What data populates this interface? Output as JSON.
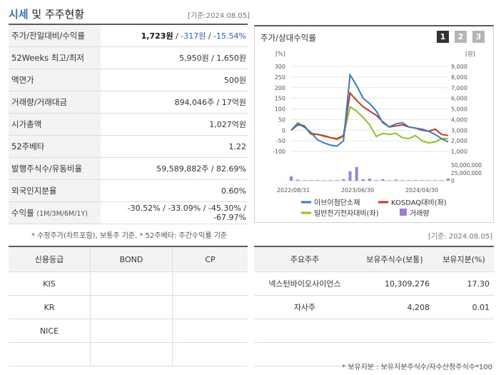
{
  "header": {
    "title_accent": "시세",
    "title_rest": " 및 주주현황",
    "date": "[기준:2024.08.05]"
  },
  "quote_rows": [
    {
      "label": "주가/전일대비/수익률",
      "price": "1,723원",
      "sep1": " / ",
      "change": "-317원",
      "sep2": " / ",
      "rate": "-15.54%"
    },
    {
      "label": "52Weeks 최고/최저",
      "value": "5,950원 / 1,650원"
    },
    {
      "label": "액면가",
      "value": "500원"
    },
    {
      "label": "거래량/거래대금",
      "value": "894,046주 / 17억원"
    },
    {
      "label": "시가총액",
      "value": "1,027억원"
    },
    {
      "label": "52주베타",
      "value": "1.22"
    },
    {
      "label": "발행주식수/유동비율",
      "value": "59,589,882주 / 82.69%"
    },
    {
      "label": "외국인지분율",
      "value": "0.60%"
    },
    {
      "label": "수익률",
      "label_sub": "(1M/3M/6M/1Y)",
      "value": "-30.52% / -33.09% / -45.30% / -67.97%"
    }
  ],
  "note1": "* 수정주가(차트포함), 보통주 기준, * 52주베타: 주간수익률 기준",
  "chart": {
    "title": "주가/상대수익률",
    "tabs": [
      "1",
      "2",
      "3"
    ],
    "left_unit": "[%]",
    "right_unit": "[원]",
    "left_ticks": [
      "300",
      "250",
      "200",
      "150",
      "100",
      "50",
      "0",
      "-50",
      "-100"
    ],
    "right_ticks": [
      "9,000",
      "8,000",
      "7,000",
      "6,000",
      "5,000",
      "4,000",
      "3,000",
      "2,000",
      "1,000"
    ],
    "vol_ticks": [
      "50,000,000",
      "25,000,000",
      "0"
    ],
    "x_ticks": [
      "2022/08/31",
      "2023/06/30",
      "2024/04/30"
    ],
    "legend": [
      "이브이첨단소재",
      "KOSDAQ대비(좌)",
      "일반전기전자대비(좌)",
      "거래량"
    ],
    "colors": {
      "stock": "#3a78c9",
      "kosdaq": "#c0392b",
      "sector": "#8dc12b",
      "volume": "#9b7fd4"
    }
  },
  "chart_data": {
    "type": "line",
    "x_index_labels": [
      "2022/08/31",
      "2023/06/30",
      "2024/04/30"
    ],
    "series": [
      {
        "name": "이브이첨단소재",
        "values": [
          0,
          30,
          15,
          -10,
          -45,
          -60,
          -70,
          -75,
          -50,
          260,
          210,
          150,
          125,
          90,
          35,
          15,
          30,
          35,
          15,
          10,
          5,
          -5,
          -20,
          -40,
          -55
        ]
      },
      {
        "name": "KOSDAQ대비(좌)",
        "values": [
          0,
          25,
          20,
          -15,
          -20,
          -25,
          -35,
          -40,
          -25,
          175,
          140,
          110,
          90,
          70,
          40,
          15,
          20,
          25,
          15,
          10,
          0,
          -5,
          5,
          -20,
          -25
        ]
      },
      {
        "name": "일반전기전자대비(좌)",
        "values": [
          0,
          35,
          20,
          -20,
          -20,
          -30,
          -35,
          -45,
          -30,
          110,
          90,
          60,
          25,
          -30,
          -15,
          -20,
          -15,
          -35,
          -40,
          -25,
          -50,
          -60,
          -55,
          -40,
          -40
        ]
      }
    ],
    "volume": [
      8,
      2,
      1,
      1,
      1,
      1,
      1,
      1,
      3,
      18,
      26,
      3,
      4,
      1,
      3,
      1,
      2,
      1,
      1,
      1,
      1,
      1,
      1,
      1,
      4
    ],
    "ylim_left": [
      -100,
      300
    ]
  },
  "date2": "[기준: 2024.08.05]",
  "credit": {
    "headers": [
      "신용등급",
      "BOND",
      "CP"
    ],
    "rows": [
      [
        "KIS",
        "",
        ""
      ],
      [
        "KR",
        "",
        ""
      ],
      [
        "NICE",
        "",
        ""
      ],
      [
        "",
        "",
        ""
      ]
    ]
  },
  "holders": {
    "headers": [
      "주요주주",
      "보유주식수(보통)",
      "보유지분(%)"
    ],
    "rows": [
      [
        "넥스턴바이오사이언스",
        "10,309,276",
        "17.30"
      ],
      [
        "자사주",
        "4,208",
        "0.01"
      ],
      [
        "",
        "",
        ""
      ],
      [
        "",
        "",
        ""
      ]
    ]
  },
  "note2": "* 보유지분 : 보유지분주식수/자수산정주식수*100"
}
